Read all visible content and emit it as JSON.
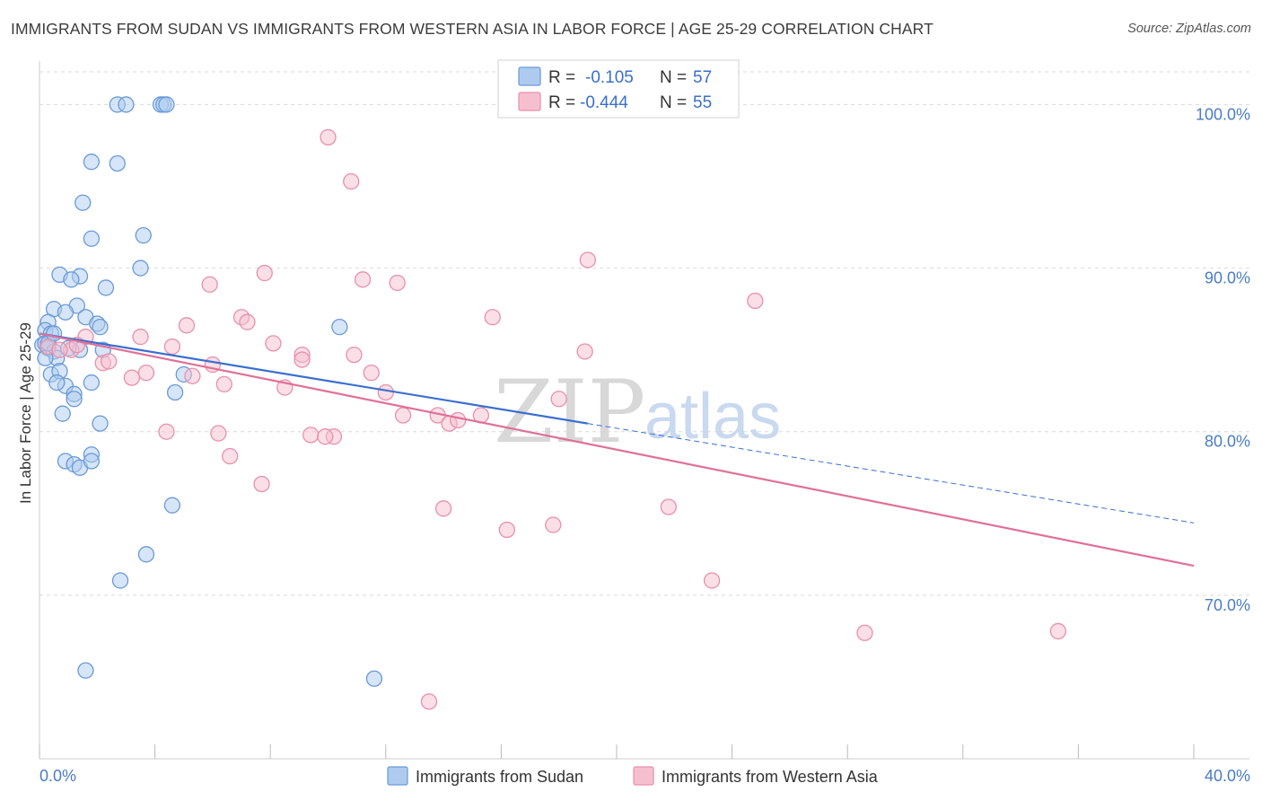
{
  "header": {
    "title": "IMMIGRANTS FROM SUDAN VS IMMIGRANTS FROM WESTERN ASIA IN LABOR FORCE | AGE 25-29 CORRELATION CHART",
    "source": "Source: ZipAtlas.com"
  },
  "watermark": {
    "zip": "ZIP",
    "atlas": "atlas"
  },
  "colors": {
    "sudan_fill": "#aecbef",
    "sudan_stroke": "#6a9ad8",
    "sudan_line": "#3a6fcf",
    "wasia_fill": "#f6bfcf",
    "wasia_stroke": "#e890ab",
    "wasia_line": "#e07098",
    "value_blue": "#3a6fcf",
    "grid": "#d9d9d9"
  },
  "stats": {
    "sudan": {
      "r_label": "R =",
      "r_value": "-0.105",
      "n_label": "N =",
      "n_value": "57"
    },
    "wasia": {
      "r_label": "R =",
      "r_value": "-0.444",
      "n_label": "N =",
      "n_value": "55"
    }
  },
  "chart_data": {
    "type": "scatter",
    "title": "IMMIGRANTS FROM SUDAN VS IMMIGRANTS FROM WESTERN ASIA IN LABOR FORCE | AGE 25-29 CORRELATION CHART",
    "xlabel": "",
    "ylabel": "In Labor Force | Age 25-29",
    "xlim": [
      0,
      40
    ],
    "ylim": [
      60,
      102
    ],
    "x_tick_labels": [
      "0.0%",
      "40.0%"
    ],
    "y_ticks": [
      70,
      80,
      90,
      100
    ],
    "y_tick_labels": [
      "70.0%",
      "80.0%",
      "90.0%",
      "100.0%"
    ],
    "grid": true,
    "legend": [
      "Immigrants from Sudan",
      "Immigrants from Western Asia"
    ],
    "series": [
      {
        "name": "Immigrants from Sudan",
        "x": [
          2.7,
          3.0,
          4.2,
          4.3,
          1.8,
          2.7,
          1.5,
          3.6,
          1.8,
          3.5,
          0.7,
          1.4,
          1.1,
          2.3,
          1.3,
          0.5,
          0.9,
          1.6,
          0.3,
          2.0,
          2.1,
          0.2,
          0.4,
          0.1,
          0.2,
          0.3,
          0.5,
          0.6,
          0.4,
          2.2,
          1.4,
          5.0,
          0.7,
          0.9,
          1.2,
          1.8,
          4.7,
          0.8,
          2.1,
          0.9,
          1.8,
          1.2,
          1.4,
          1.8,
          4.6,
          3.7,
          2.8,
          1.6,
          10.4,
          11.6,
          0.2,
          1.0,
          0.3,
          0.6,
          1.2,
          4.4,
          0.5
        ],
        "y": [
          100.0,
          100.0,
          100.0,
          100.0,
          96.5,
          96.4,
          94.0,
          92.0,
          91.8,
          90.0,
          89.6,
          89.5,
          89.3,
          88.8,
          87.7,
          87.5,
          87.3,
          87.0,
          86.7,
          86.6,
          86.4,
          86.2,
          86.0,
          85.3,
          85.4,
          85.1,
          84.9,
          84.5,
          83.5,
          85.0,
          85.0,
          83.5,
          83.7,
          82.8,
          82.3,
          83.0,
          82.4,
          81.1,
          80.5,
          78.2,
          78.6,
          78.0,
          77.8,
          78.2,
          75.5,
          72.5,
          70.9,
          65.4,
          86.4,
          64.9,
          84.5,
          85.1,
          85.4,
          83.0,
          82.0,
          100.0,
          86.0
        ],
        "trend": {
          "x": [
            0,
            19
          ],
          "y": [
            86.0,
            80.5
          ]
        }
      },
      {
        "name": "Immigrants from Western Asia",
        "x": [
          10.0,
          10.8,
          19.0,
          24.8,
          7.8,
          11.2,
          12.4,
          5.9,
          7.0,
          15.7,
          7.2,
          5.1,
          1.6,
          8.1,
          9.1,
          10.9,
          4.6,
          3.5,
          0.3,
          1.1,
          2.2,
          2.4,
          11.5,
          12.0,
          9.1,
          6.0,
          3.7,
          3.2,
          6.4,
          8.5,
          5.3,
          12.6,
          13.8,
          15.3,
          18.9,
          14.2,
          14.5,
          10.2,
          6.2,
          4.4,
          9.4,
          9.9,
          6.6,
          7.7,
          14.0,
          16.2,
          21.8,
          17.8,
          23.3,
          18.0,
          28.6,
          35.3,
          13.5,
          0.7,
          1.3
        ],
        "y": [
          98.0,
          95.3,
          90.5,
          88.0,
          89.7,
          89.3,
          89.1,
          89.0,
          87.0,
          87.0,
          86.7,
          86.5,
          85.8,
          85.4,
          84.7,
          84.7,
          85.2,
          85.8,
          85.2,
          85.0,
          84.2,
          84.3,
          83.6,
          82.4,
          84.4,
          84.1,
          83.6,
          83.3,
          82.9,
          82.7,
          83.4,
          81.0,
          81.0,
          81.0,
          84.9,
          80.5,
          80.7,
          79.7,
          79.9,
          80.0,
          79.8,
          79.7,
          78.5,
          76.8,
          75.3,
          74.0,
          75.4,
          74.3,
          70.9,
          82.0,
          67.7,
          67.8,
          63.5,
          85.0,
          85.3
        ],
        "trend": {
          "x": [
            0,
            40
          ],
          "y": [
            86.0,
            71.8
          ]
        }
      }
    ]
  }
}
